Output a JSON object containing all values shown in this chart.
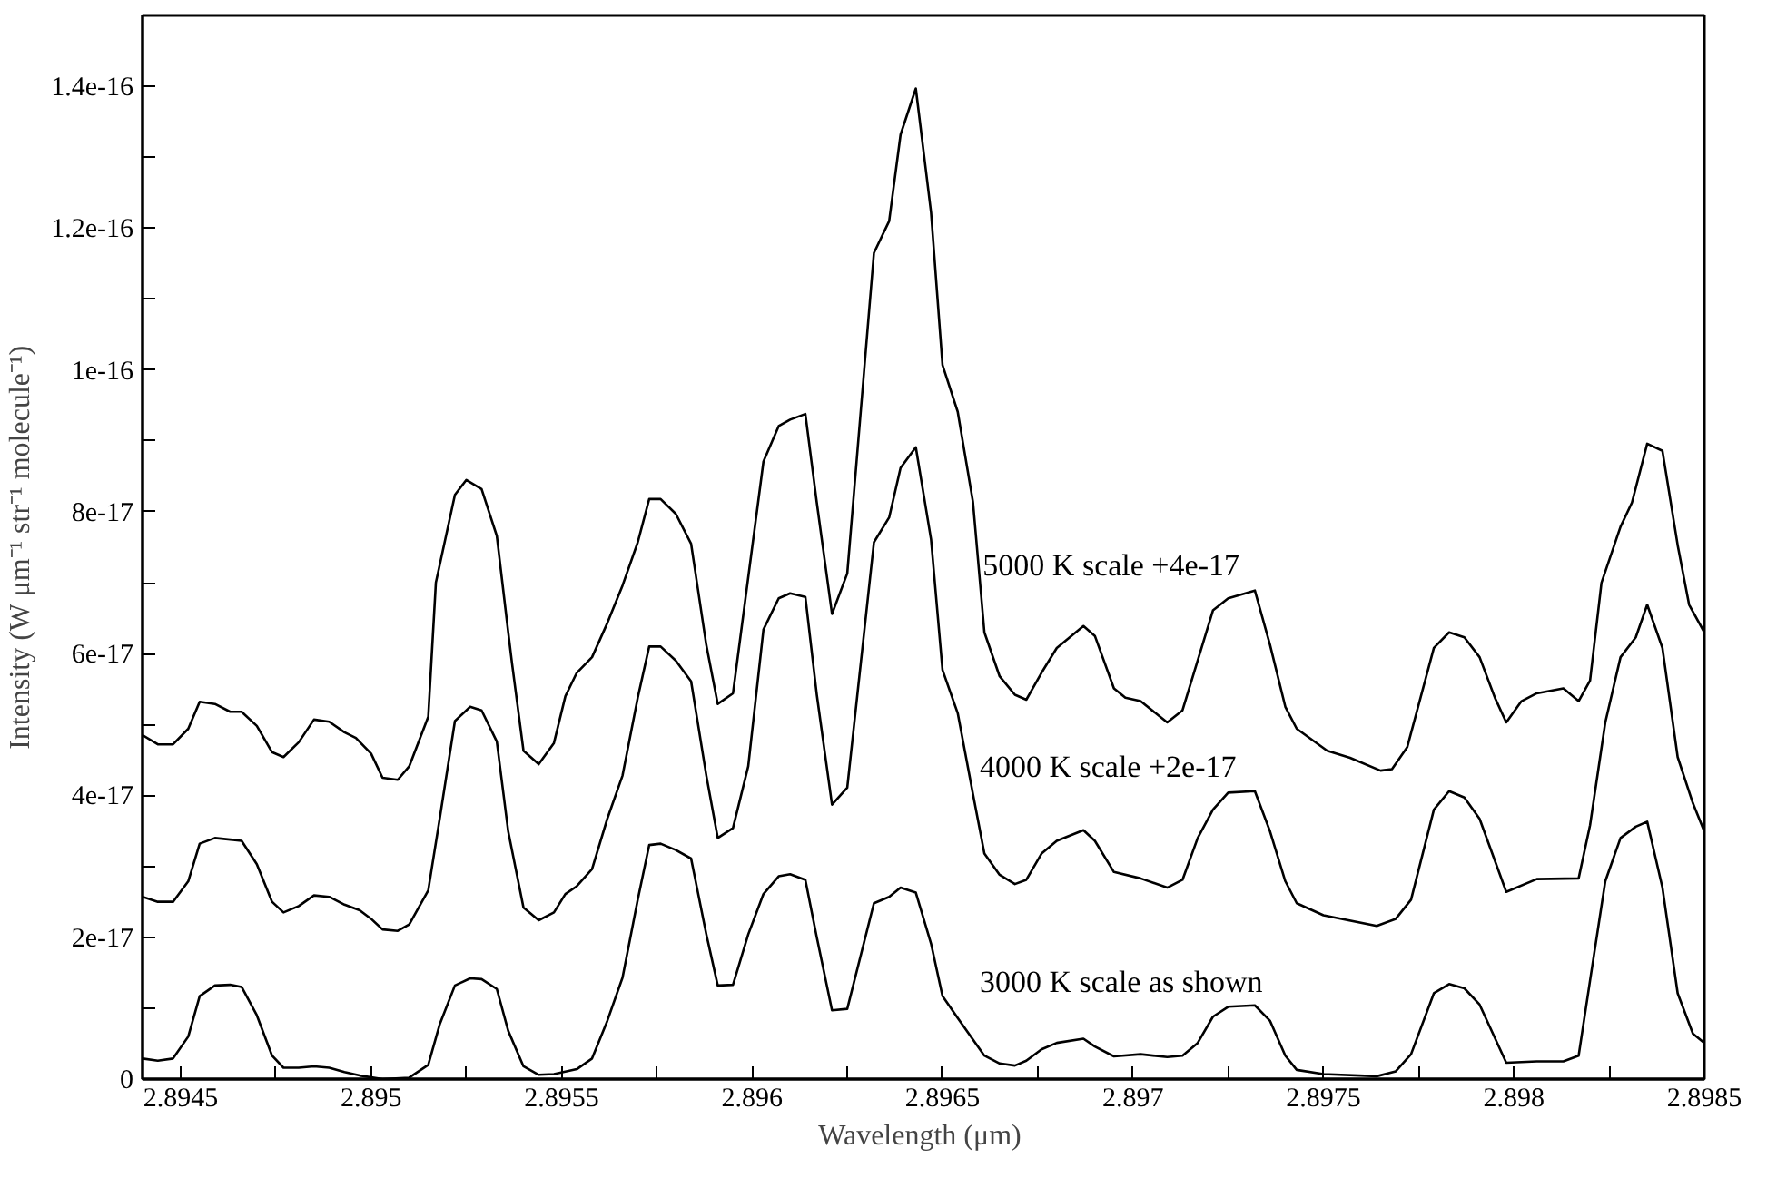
{
  "chart_data": {
    "type": "line",
    "xlabel": "Wavelength  (μm)",
    "ylabel": "Intensity (W μm⁻¹ str⁻¹ molecule⁻¹)",
    "xlim": [
      2.8944,
      2.8985
    ],
    "ylim": [
      0,
      1.5e-16
    ],
    "xticks": [
      2.8945,
      {
        "value": 2.89475,
        "label": null
      },
      2.895,
      {
        "value": 2.89525,
        "label": null
      },
      2.8955,
      {
        "value": 2.89575,
        "label": null
      },
      2.896,
      {
        "value": 2.89625,
        "label": null
      },
      2.8965,
      {
        "value": 2.89675,
        "label": null
      },
      2.897,
      {
        "value": 2.89725,
        "label": null
      },
      2.8975,
      {
        "value": 2.89775,
        "label": null
      },
      2.898,
      {
        "value": 2.89825,
        "label": null
      },
      2.8985
    ],
    "yticks": [
      0,
      {
        "value": 1e-17,
        "label": null
      },
      {
        "value": 2e-17,
        "label": "2e-17"
      },
      {
        "value": 3e-17,
        "label": null
      },
      {
        "value": 4e-17,
        "label": "4e-17"
      },
      {
        "value": 5e-17,
        "label": null
      },
      {
        "value": 6e-17,
        "label": "6e-17"
      },
      {
        "value": 7e-17,
        "label": null
      },
      {
        "value": 8e-17,
        "label": "8e-17"
      },
      {
        "value": 9e-17,
        "label": null
      },
      {
        "value": 1e-16,
        "label": "1e-16"
      },
      {
        "value": 1.1e-16,
        "label": null
      },
      {
        "value": 1.2e-16,
        "label": "1.2e-16"
      },
      {
        "value": 1.3e-16,
        "label": null
      },
      {
        "value": 1.4e-16,
        "label": "1.4e-16"
      }
    ],
    "grid": false,
    "marker": "none",
    "line_style": "solid",
    "series": [
      {
        "color": "#000000",
        "x": [
          2.8944,
          2.89444,
          2.89448,
          2.89452,
          2.89455,
          2.89459,
          2.89463,
          2.89466,
          2.8947,
          2.89474,
          2.89477,
          2.89481,
          2.89485,
          2.89489,
          2.89493,
          2.89496,
          2.895,
          2.89503,
          2.89507,
          2.8951,
          2.89515,
          2.89517,
          2.89522,
          2.89525,
          2.89529,
          2.89533,
          2.89536,
          2.89537,
          2.8954,
          2.89544,
          2.89548,
          2.89551,
          2.89554,
          2.89558,
          2.89562,
          2.89566,
          2.8957,
          2.89573,
          2.89576,
          2.8958,
          2.89584,
          2.89588,
          2.89591,
          2.89595,
          2.89603,
          2.89607,
          2.8961,
          2.89614,
          2.89617,
          2.89621,
          2.89625,
          2.89632,
          2.89636,
          2.89639,
          2.89643,
          2.89647,
          2.8965,
          2.89654,
          2.89658,
          2.89661,
          2.89665,
          2.89669,
          2.89672,
          2.89676,
          2.8968,
          2.89687,
          2.8969,
          2.89695,
          2.89698,
          2.89702,
          2.89709,
          2.89713,
          2.89721,
          2.89725,
          2.89732,
          2.89736,
          2.8974,
          2.89743,
          2.89751,
          2.89757,
          2.89765,
          2.89768,
          2.89772,
          2.89779,
          2.89783,
          2.89787,
          2.89791,
          2.89795,
          2.89798,
          2.89802,
          2.89806,
          2.89813,
          2.89817,
          2.8982,
          2.89823,
          2.89828,
          2.89831,
          2.89835,
          2.89839,
          2.89843,
          2.89846,
          2.8985
        ],
        "values": [
          4.85e-17,
          4.72e-17,
          4.72e-17,
          4.94e-17,
          5.32e-17,
          5.29e-17,
          5.18e-17,
          5.18e-17,
          4.98e-17,
          4.61e-17,
          4.54e-17,
          4.75e-17,
          5.07e-17,
          5.04e-17,
          4.89e-17,
          4.81e-17,
          4.59e-17,
          4.25e-17,
          4.22e-17,
          4.41e-17,
          5.11e-17,
          7e-17,
          8.24e-17,
          8.45e-17,
          8.32e-17,
          7.66e-17,
          6.3e-17,
          5.86e-17,
          4.63e-17,
          4.44e-17,
          4.74e-17,
          5.4e-17,
          5.73e-17,
          5.95e-17,
          6.43e-17,
          6.96e-17,
          7.57e-17,
          8.18e-17,
          8.18e-17,
          7.97e-17,
          7.55e-17,
          6.12e-17,
          5.29e-17,
          5.44e-17,
          8.71e-17,
          9.21e-17,
          9.3e-17,
          9.38e-17,
          8.13e-17,
          6.56e-17,
          7.13e-17,
          1.165e-16,
          1.21e-16,
          1.332e-16,
          1.397e-16,
          1.222e-16,
          1.007e-16,
          9.41e-17,
          8.14e-17,
          6.3e-17,
          5.68e-17,
          5.42e-17,
          5.35e-17,
          5.73e-17,
          6.08e-17,
          6.39e-17,
          6.25e-17,
          5.51e-17,
          5.38e-17,
          5.33e-17,
          5.03e-17,
          5.2e-17,
          6.61e-17,
          6.78e-17,
          6.89e-17,
          6.12e-17,
          5.25e-17,
          4.94e-17,
          4.63e-17,
          4.53e-17,
          4.35e-17,
          4.37e-17,
          4.68e-17,
          6.08e-17,
          6.3e-17,
          6.23e-17,
          5.95e-17,
          5.38e-17,
          5.03e-17,
          5.33e-17,
          5.44e-17,
          5.51e-17,
          5.33e-17,
          5.62e-17,
          7e-17,
          7.79e-17,
          8.13e-17,
          8.96e-17,
          8.86e-17,
          7.53e-17,
          6.69e-17,
          6.3e-17
        ]
      },
      {
        "color": "#000000",
        "x": [
          2.8944,
          2.89444,
          2.89448,
          2.89452,
          2.89455,
          2.89459,
          2.89466,
          2.8947,
          2.89474,
          2.89477,
          2.89481,
          2.89485,
          2.89489,
          2.89493,
          2.89497,
          2.895,
          2.89503,
          2.89507,
          2.8951,
          2.89515,
          2.89518,
          2.89522,
          2.89526,
          2.89529,
          2.89533,
          2.89536,
          2.8954,
          2.89544,
          2.89548,
          2.89551,
          2.89554,
          2.89558,
          2.89562,
          2.89566,
          2.8957,
          2.89573,
          2.89576,
          2.8958,
          2.89584,
          2.89588,
          2.89591,
          2.89595,
          2.89599,
          2.89603,
          2.89607,
          2.8961,
          2.89614,
          2.89617,
          2.89621,
          2.89625,
          2.89632,
          2.89636,
          2.89639,
          2.89643,
          2.89647,
          2.8965,
          2.89654,
          2.89658,
          2.89661,
          2.89665,
          2.89669,
          2.89672,
          2.89676,
          2.8968,
          2.89687,
          2.8969,
          2.89695,
          2.89702,
          2.89709,
          2.89713,
          2.89717,
          2.89721,
          2.89725,
          2.89732,
          2.89736,
          2.8974,
          2.89743,
          2.8975,
          2.89764,
          2.89769,
          2.89773,
          2.89779,
          2.89783,
          2.89787,
          2.89791,
          2.89798,
          2.89806,
          2.89817,
          2.8982,
          2.89824,
          2.89828,
          2.89832,
          2.89835,
          2.89839,
          2.89843,
          2.89847,
          2.8985
        ],
        "values": [
          2.57e-17,
          2.5e-17,
          2.5e-17,
          2.79e-17,
          3.32e-17,
          3.4e-17,
          3.36e-17,
          3.03e-17,
          2.5e-17,
          2.35e-17,
          2.44e-17,
          2.59e-17,
          2.57e-17,
          2.46e-17,
          2.38e-17,
          2.26e-17,
          2.11e-17,
          2.09e-17,
          2.18e-17,
          2.66e-17,
          3.67e-17,
          5.05e-17,
          5.25e-17,
          5.2e-17,
          4.76e-17,
          3.49e-17,
          2.42e-17,
          2.24e-17,
          2.35e-17,
          2.61e-17,
          2.72e-17,
          2.96e-17,
          3.67e-17,
          4.28e-17,
          5.38e-17,
          6.1e-17,
          6.1e-17,
          5.9e-17,
          5.61e-17,
          4.28e-17,
          3.4e-17,
          3.54e-17,
          4.41e-17,
          6.34e-17,
          6.78e-17,
          6.85e-17,
          6.8e-17,
          5.42e-17,
          3.87e-17,
          4.11e-17,
          7.57e-17,
          7.92e-17,
          8.62e-17,
          8.91e-17,
          7.61e-17,
          5.77e-17,
          5.16e-17,
          4.02e-17,
          3.18e-17,
          2.88e-17,
          2.75e-17,
          2.81e-17,
          3.18e-17,
          3.36e-17,
          3.51e-17,
          3.36e-17,
          2.92e-17,
          2.83e-17,
          2.7e-17,
          2.81e-17,
          3.4e-17,
          3.8e-17,
          4.04e-17,
          4.06e-17,
          3.49e-17,
          2.79e-17,
          2.48e-17,
          2.31e-17,
          2.16e-17,
          2.26e-17,
          2.53e-17,
          3.8e-17,
          4.06e-17,
          3.97e-17,
          3.67e-17,
          2.64e-17,
          2.82e-17,
          2.83e-17,
          3.58e-17,
          5.03e-17,
          5.95e-17,
          6.23e-17,
          6.69e-17,
          6.08e-17,
          4.54e-17,
          3.89e-17,
          3.49e-17
        ]
      },
      {
        "color": "#000000",
        "x": [
          2.8944,
          2.89444,
          2.89448,
          2.89452,
          2.89455,
          2.89459,
          2.89463,
          2.89466,
          2.8947,
          2.89474,
          2.89477,
          2.89481,
          2.89485,
          2.89489,
          2.89493,
          2.89497,
          2.89503,
          2.8951,
          2.89515,
          2.89518,
          2.89522,
          2.89526,
          2.89529,
          2.89533,
          2.89536,
          2.8954,
          2.89544,
          2.89548,
          2.89554,
          2.89558,
          2.89562,
          2.89566,
          2.8957,
          2.89573,
          2.89576,
          2.8958,
          2.89584,
          2.89588,
          2.89591,
          2.89595,
          2.89599,
          2.89603,
          2.89607,
          2.8961,
          2.89614,
          2.89617,
          2.89621,
          2.89625,
          2.89632,
          2.89636,
          2.89639,
          2.89643,
          2.89647,
          2.8965,
          2.89654,
          2.89661,
          2.89665,
          2.89669,
          2.89672,
          2.89676,
          2.8968,
          2.89687,
          2.8969,
          2.89695,
          2.89702,
          2.89709,
          2.89713,
          2.89717,
          2.89721,
          2.89725,
          2.89732,
          2.89736,
          2.8974,
          2.89743,
          2.8975,
          2.89764,
          2.89769,
          2.89773,
          2.89779,
          2.89783,
          2.89787,
          2.89791,
          2.89798,
          2.89806,
          2.89813,
          2.89817,
          2.8982,
          2.89824,
          2.89828,
          2.89832,
          2.89835,
          2.89839,
          2.89843,
          2.89847,
          2.8985
        ],
        "values": [
          2.9e-18,
          2.6e-18,
          2.9e-18,
          6e-18,
          1.17e-17,
          1.32e-17,
          1.33e-17,
          1.3e-17,
          9e-18,
          3.3e-18,
          1.6e-18,
          1.6e-18,
          1.8e-18,
          1.6e-18,
          1e-18,
          5e-19,
          0,
          2e-19,
          2e-18,
          7.7e-18,
          1.32e-17,
          1.42e-17,
          1.41e-17,
          1.27e-17,
          6.8e-18,
          1.8e-18,
          6e-19,
          7e-19,
          1.4e-18,
          2.9e-18,
          8.2e-18,
          1.43e-17,
          2.53e-17,
          3.3e-17,
          3.32e-17,
          3.23e-17,
          3.11e-17,
          2.04e-17,
          1.32e-17,
          1.33e-17,
          2.04e-17,
          2.61e-17,
          2.86e-17,
          2.89e-17,
          2.81e-17,
          2e-17,
          9.7e-18,
          9.9e-18,
          2.48e-17,
          2.57e-17,
          2.7e-17,
          2.63e-17,
          1.91e-17,
          1.17e-17,
          8.6e-18,
          3.3e-18,
          2.2e-18,
          1.9e-18,
          2.6e-18,
          4.2e-18,
          5.1e-18,
          5.7e-18,
          4.6e-18,
          3.2e-18,
          3.5e-18,
          3.1e-18,
          3.3e-18,
          5.1e-18,
          8.8e-18,
          1.02e-17,
          1.04e-17,
          8.2e-18,
          3.3e-18,
          1.3e-18,
          7e-19,
          4e-19,
          1.1e-18,
          3.5e-18,
          1.21e-17,
          1.34e-17,
          1.28e-17,
          1.05e-17,
          2.3e-18,
          2.5e-18,
          2.5e-18,
          3.3e-18,
          1.39e-17,
          2.79e-17,
          3.4e-17,
          3.56e-17,
          3.63e-17,
          2.7e-17,
          1.21e-17,
          6.4e-18,
          5.1e-18
        ]
      }
    ],
    "annotations": [
      "5000 K  scale +4e-17",
      "4000 K scale +2e-17",
      "3000 K scale as shown"
    ]
  }
}
